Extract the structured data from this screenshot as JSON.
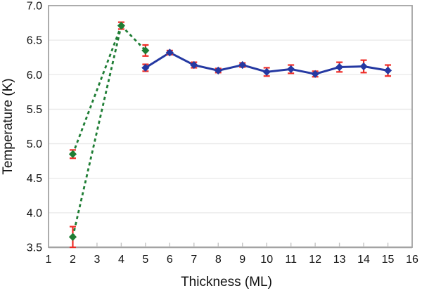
{
  "chart_data": {
    "type": "line",
    "title": "",
    "xlabel": "Thickness (ML)",
    "ylabel": "Temperature (K)",
    "xlim": [
      1,
      16
    ],
    "ylim": [
      3.5,
      7.0
    ],
    "x_ticks": [
      1,
      2,
      3,
      4,
      5,
      6,
      7,
      8,
      9,
      10,
      11,
      12,
      13,
      14,
      15,
      16
    ],
    "x_tick_labels": [
      "1",
      "2",
      "3",
      "4",
      "5",
      "6",
      "7",
      "8",
      "9",
      "10",
      "11",
      "12",
      "13",
      "14",
      "15",
      "16"
    ],
    "y_ticks": [
      3.5,
      4.0,
      4.5,
      5.0,
      5.5,
      6.0,
      6.5,
      7.0
    ],
    "y_tick_labels": [
      "3.5",
      "4.0",
      "4.5",
      "5.0",
      "5.5",
      "6.0",
      "6.5",
      "7.0"
    ],
    "grid": "horizontal-only",
    "legend": "none",
    "grid_color": "#e9e9e9",
    "axis_color": "#a3a3a3",
    "tick_mark_color": "#c4c4c4",
    "tick_label_color": "#111111",
    "error_bar_color": "#ee2b25",
    "series": [
      {
        "name": "green-dashed",
        "color": "#1e7d34",
        "line_style": "dashed",
        "marker": "diamond",
        "points": [
          {
            "x": 2,
            "y": 3.65,
            "err": 0.15
          },
          {
            "x": 2,
            "y": 4.85,
            "err": 0.06
          },
          {
            "x": 4,
            "y": 6.71,
            "err": 0.05
          },
          {
            "x": 5,
            "y": 6.35,
            "err": 0.08
          }
        ],
        "segments": [
          [
            [
              2,
              3.65
            ],
            [
              4,
              6.71
            ]
          ],
          [
            [
              2,
              4.85
            ],
            [
              4,
              6.71
            ]
          ],
          [
            [
              4,
              6.71
            ],
            [
              5,
              6.35
            ]
          ]
        ]
      },
      {
        "name": "blue-solid",
        "color": "#2539a2",
        "line_style": "solid",
        "marker": "diamond",
        "points": [
          {
            "x": 5,
            "y": 6.1,
            "err": 0.05
          },
          {
            "x": 6,
            "y": 6.32,
            "err": 0.03
          },
          {
            "x": 7,
            "y": 6.14,
            "err": 0.04
          },
          {
            "x": 8,
            "y": 6.06,
            "err": 0.03
          },
          {
            "x": 9,
            "y": 6.14,
            "err": 0.03
          },
          {
            "x": 10,
            "y": 6.04,
            "err": 0.06
          },
          {
            "x": 11,
            "y": 6.08,
            "err": 0.06
          },
          {
            "x": 12,
            "y": 6.01,
            "err": 0.04
          },
          {
            "x": 13,
            "y": 6.11,
            "err": 0.07
          },
          {
            "x": 14,
            "y": 6.12,
            "err": 0.09
          },
          {
            "x": 15,
            "y": 6.06,
            "err": 0.08
          }
        ]
      }
    ]
  }
}
